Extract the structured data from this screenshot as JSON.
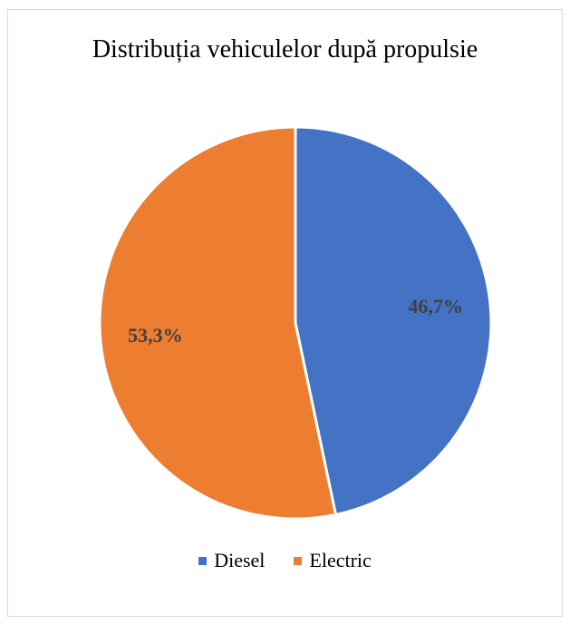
{
  "chart_data": {
    "type": "pie",
    "title": "Distribuția vehiculelor după propulsie",
    "categories": [
      "Diesel",
      "Electric"
    ],
    "values": [
      46.7,
      53.3
    ],
    "value_labels": [
      "46,7%",
      "53,3%"
    ],
    "colors": [
      "#4472C4",
      "#ED7D31"
    ],
    "start_angle_deg": 0,
    "direction": "clockwise",
    "legend_position": "bottom",
    "data_label_color": "#404040"
  }
}
